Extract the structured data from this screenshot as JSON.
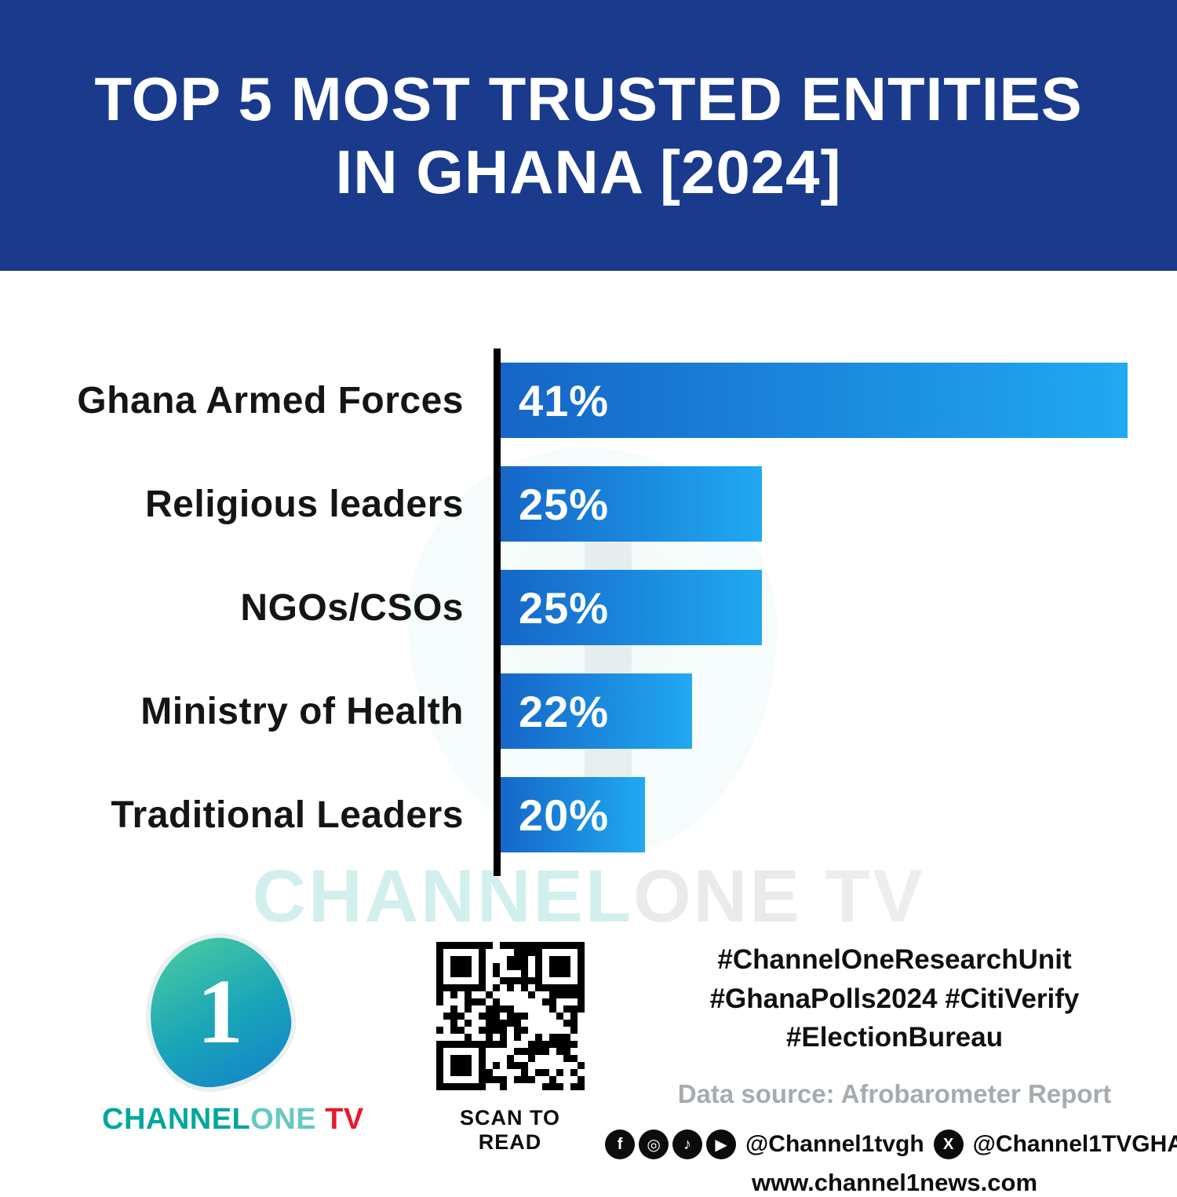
{
  "header": {
    "title_line1": "TOP 5 MOST TRUSTED ENTITIES",
    "title_line2": "IN GHANA [2024]"
  },
  "chart_data": {
    "type": "bar",
    "orientation": "horizontal",
    "title": "TOP 5 MOST TRUSTED ENTITIES IN GHANA [2024]",
    "categories": [
      "Ghana Armed Forces",
      "Religious leaders",
      "NGOs/CSOs",
      "Ministry of Health",
      "Traditional Leaders"
    ],
    "values": [
      41,
      25,
      25,
      22,
      20
    ],
    "value_labels": [
      "41%",
      "25%",
      "25%",
      "22%",
      "20%"
    ],
    "xlabel": "",
    "ylabel": "",
    "xlim": [
      0,
      41
    ],
    "grid": false,
    "legend": false,
    "display_widths_pct": [
      100,
      42,
      42,
      31,
      23.5
    ],
    "bar_color_start": "#1565C7",
    "bar_color_end": "#20A9F1"
  },
  "watermark": {
    "channel": "CHANNEL",
    "one": "ONE",
    "tv": " TV"
  },
  "footer": {
    "logo": {
      "numeral": "1",
      "channel": "CHANNEL",
      "one": "ONE",
      "tv": " TV"
    },
    "qr_caption": "SCAN TO READ",
    "hashtags_line1": "#ChannelOneResearchUnit",
    "hashtags_line2": "#GhanaPolls2024 #CitiVerify",
    "hashtags_line3": "#ElectionBureau",
    "data_source": "Data source: Afrobarometer Report",
    "social_handle_1": "@Channel1tvgh",
    "social_handle_2": "@Channel1TVGHA",
    "website": "www.channel1news.com",
    "icon_glyphs": {
      "facebook": "f",
      "instagram": "◎",
      "tiktok": "♪",
      "youtube": "▶",
      "x": "X"
    }
  },
  "colors": {
    "header_bg": "#1A3A8C",
    "bar_gradient_start": "#1565C7",
    "bar_gradient_end": "#20A9F1",
    "brand_teal": "#00A79D",
    "brand_red": "#E8192C",
    "source_gray": "#A6ABB0"
  }
}
